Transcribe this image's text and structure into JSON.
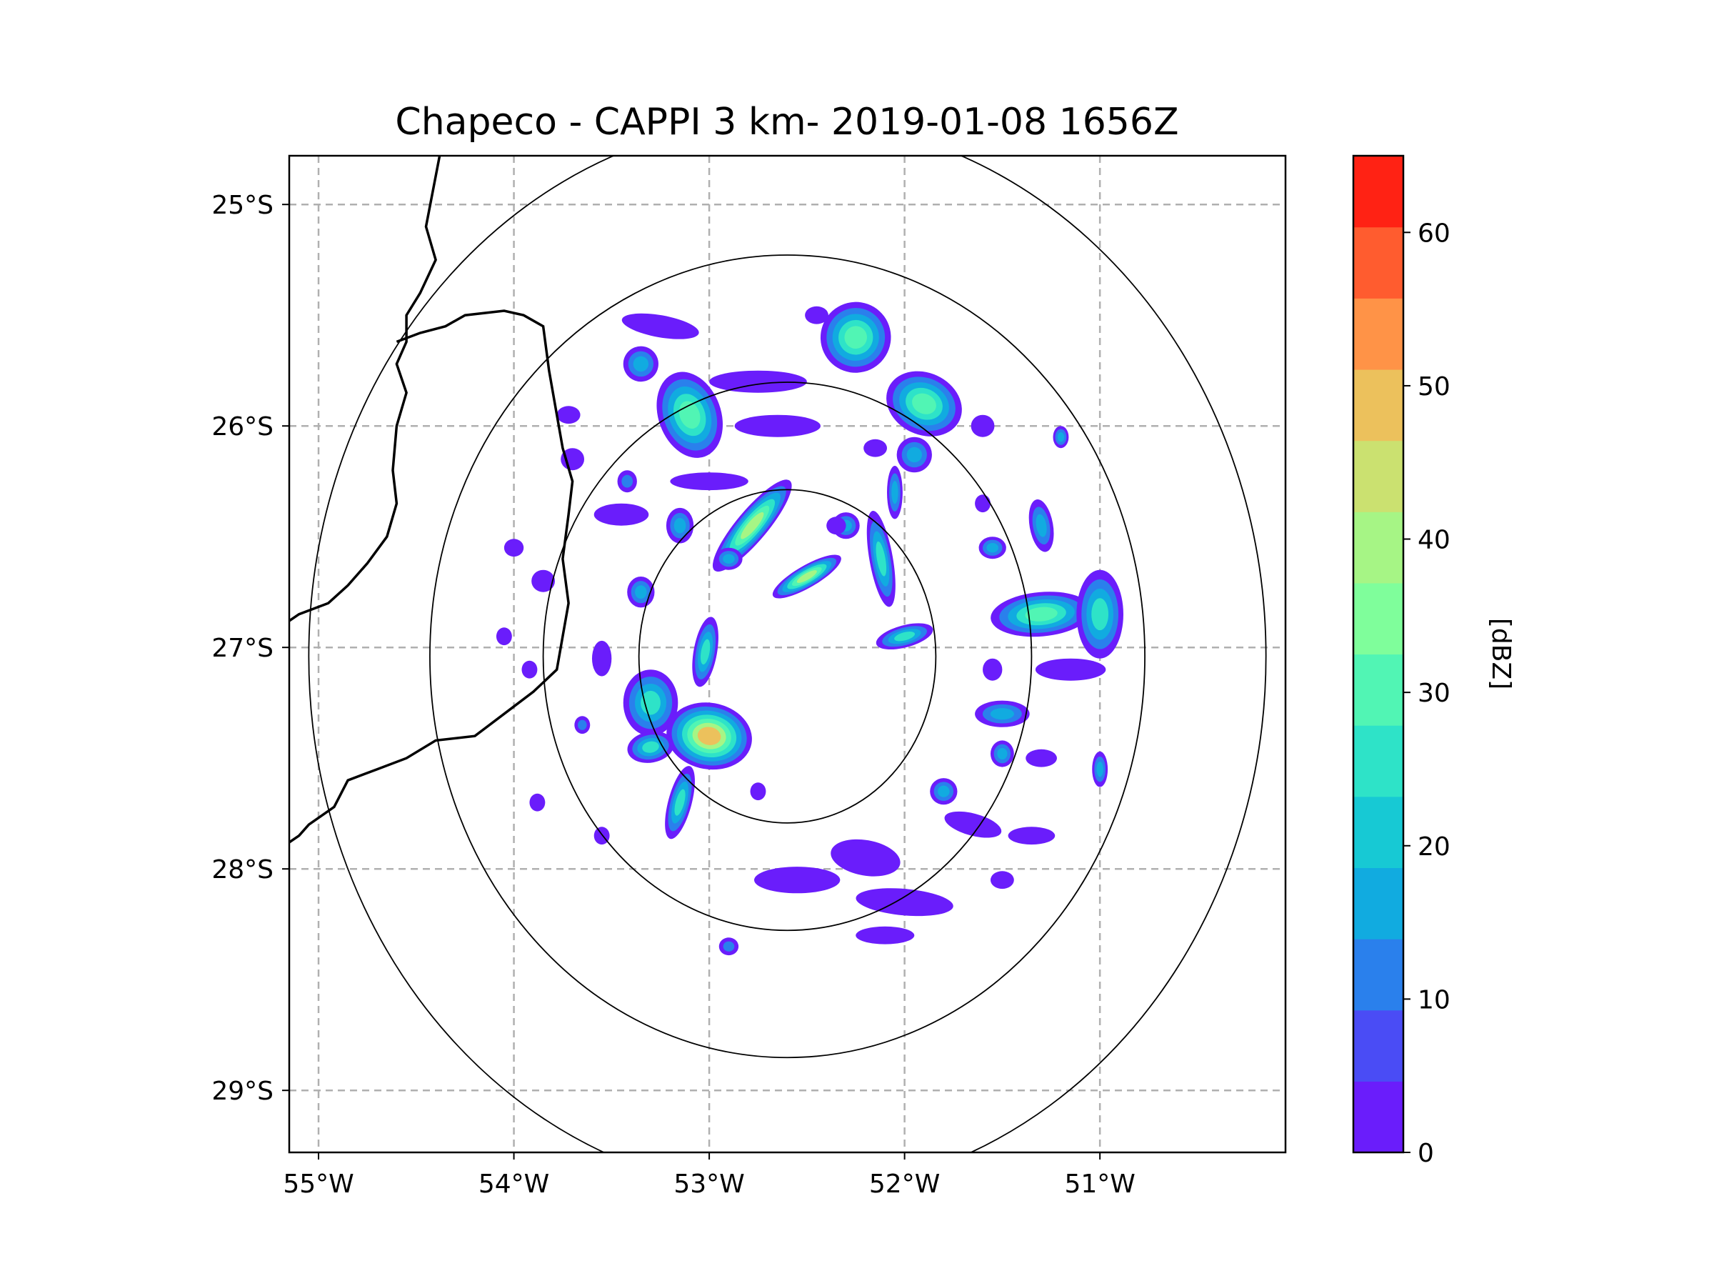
{
  "chart_data": {
    "type": "heatmap",
    "title": "Chapeco - CAPPI 3 km- 2019-01-08 1656Z",
    "xlabel": "",
    "ylabel": "",
    "xlim": [
      -55.15,
      -50.05
    ],
    "ylim": [
      -29.28,
      -24.78
    ],
    "x_ticks": [
      {
        "value": -55,
        "label": "55°W"
      },
      {
        "value": -54,
        "label": "54°W"
      },
      {
        "value": -53,
        "label": "53°W"
      },
      {
        "value": -52,
        "label": "52°W"
      },
      {
        "value": -51,
        "label": "51°W"
      }
    ],
    "y_ticks": [
      {
        "value": -25,
        "label": "25°S"
      },
      {
        "value": -26,
        "label": "26°S"
      },
      {
        "value": -27,
        "label": "27°S"
      },
      {
        "value": -28,
        "label": "28°S"
      },
      {
        "value": -29,
        "label": "29°S"
      }
    ],
    "grid": true,
    "radar_center": {
      "lon": -52.6,
      "lat": -27.04
    },
    "range_rings_deg": [
      0.76,
      1.25,
      1.83,
      2.45
    ],
    "colorbar": {
      "label": "[dBZ]",
      "min": 0,
      "max": 65,
      "step": 5,
      "tick_labels": [
        "0",
        "10",
        "20",
        "30",
        "40",
        "50",
        "60"
      ],
      "colors": [
        "#6a1dfb",
        "#4a4cf5",
        "#2a80ec",
        "#11abe0",
        "#17c9d4",
        "#2ee3c8",
        "#51f5b4",
        "#7ffe9b",
        "#a6f585",
        "#cbe170",
        "#ecc15c",
        "#ff9347",
        "#ff5c2f",
        "#ff2214"
      ]
    },
    "echoes": [
      {
        "lon": -53.1,
        "lat": -25.95,
        "rx": 0.16,
        "ry": 0.2,
        "rot": 20,
        "dbz": 36
      },
      {
        "lon": -53.35,
        "lat": -25.72,
        "rx": 0.09,
        "ry": 0.08,
        "rot": 0,
        "dbz": 22
      },
      {
        "lon": -52.25,
        "lat": -25.6,
        "rx": 0.18,
        "ry": 0.16,
        "rot": -20,
        "dbz": 40
      },
      {
        "lon": -51.9,
        "lat": -25.9,
        "rx": 0.2,
        "ry": 0.14,
        "rot": -25,
        "dbz": 36
      },
      {
        "lon": -51.95,
        "lat": -26.13,
        "rx": 0.09,
        "ry": 0.08,
        "rot": 0,
        "dbz": 25
      },
      {
        "lon": -52.78,
        "lat": -26.45,
        "rx": 0.3,
        "ry": 0.07,
        "rot": 50,
        "dbz": 45
      },
      {
        "lon": -52.5,
        "lat": -26.68,
        "rx": 0.2,
        "ry": 0.05,
        "rot": 30,
        "dbz": 42
      },
      {
        "lon": -52.3,
        "lat": -26.45,
        "rx": 0.07,
        "ry": 0.06,
        "rot": 0,
        "dbz": 22
      },
      {
        "lon": -52.12,
        "lat": -26.6,
        "rx": 0.06,
        "ry": 0.22,
        "rot": 10,
        "dbz": 30
      },
      {
        "lon": -52.0,
        "lat": -26.95,
        "rx": 0.15,
        "ry": 0.05,
        "rot": 15,
        "dbz": 28
      },
      {
        "lon": -53.35,
        "lat": -26.75,
        "rx": 0.07,
        "ry": 0.07,
        "rot": 0,
        "dbz": 25
      },
      {
        "lon": -53.15,
        "lat": -26.45,
        "rx": 0.07,
        "ry": 0.08,
        "rot": 0,
        "dbz": 22
      },
      {
        "lon": -52.9,
        "lat": -26.6,
        "rx": 0.07,
        "ry": 0.05,
        "rot": 0,
        "dbz": 25
      },
      {
        "lon": -53.3,
        "lat": -27.25,
        "rx": 0.14,
        "ry": 0.15,
        "rot": 0,
        "dbz": 32
      },
      {
        "lon": -53.0,
        "lat": -27.4,
        "rx": 0.22,
        "ry": 0.15,
        "rot": -10,
        "dbz": 50
      },
      {
        "lon": -53.3,
        "lat": -27.45,
        "rx": 0.12,
        "ry": 0.07,
        "rot": 10,
        "dbz": 28
      },
      {
        "lon": -53.15,
        "lat": -27.7,
        "rx": 0.06,
        "ry": 0.17,
        "rot": -15,
        "dbz": 32
      },
      {
        "lon": -53.02,
        "lat": -27.02,
        "rx": 0.06,
        "ry": 0.16,
        "rot": -10,
        "dbz": 32
      },
      {
        "lon": -51.3,
        "lat": -26.85,
        "rx": 0.26,
        "ry": 0.1,
        "rot": 5,
        "dbz": 36
      },
      {
        "lon": -51.0,
        "lat": -26.85,
        "rx": 0.12,
        "ry": 0.2,
        "rot": 0,
        "dbz": 30
      },
      {
        "lon": -51.3,
        "lat": -26.45,
        "rx": 0.06,
        "ry": 0.12,
        "rot": 10,
        "dbz": 25
      },
      {
        "lon": -51.55,
        "lat": -26.55,
        "rx": 0.07,
        "ry": 0.05,
        "rot": 0,
        "dbz": 20
      },
      {
        "lon": -51.5,
        "lat": -27.3,
        "rx": 0.14,
        "ry": 0.06,
        "rot": 0,
        "dbz": 25
      },
      {
        "lon": -51.5,
        "lat": -27.48,
        "rx": 0.06,
        "ry": 0.06,
        "rot": 0,
        "dbz": 20
      },
      {
        "lon": -51.8,
        "lat": -27.65,
        "rx": 0.07,
        "ry": 0.06,
        "rot": 0,
        "dbz": 22
      },
      {
        "lon": -51.0,
        "lat": -27.55,
        "rx": 0.04,
        "ry": 0.08,
        "rot": 0,
        "dbz": 18
      },
      {
        "lon": -51.2,
        "lat": -26.05,
        "rx": 0.04,
        "ry": 0.05,
        "rot": 0,
        "dbz": 18
      },
      {
        "lon": -52.05,
        "lat": -26.3,
        "rx": 0.04,
        "ry": 0.12,
        "rot": 0,
        "dbz": 20
      },
      {
        "lon": -53.42,
        "lat": -26.25,
        "rx": 0.05,
        "ry": 0.05,
        "rot": 0,
        "dbz": 15
      },
      {
        "lon": -53.65,
        "lat": -27.35,
        "rx": 0.04,
        "ry": 0.04,
        "rot": 0,
        "dbz": 15
      },
      {
        "lon": -52.9,
        "lat": -28.35,
        "rx": 0.05,
        "ry": 0.04,
        "rot": 0,
        "dbz": 12
      },
      {
        "lon": -52.2,
        "lat": -27.95,
        "rx": 0.18,
        "ry": 0.08,
        "rot": -10,
        "dbz": 8
      },
      {
        "lon": -52.55,
        "lat": -28.05,
        "rx": 0.22,
        "ry": 0.06,
        "rot": 0,
        "dbz": 6
      },
      {
        "lon": -52.0,
        "lat": -28.15,
        "rx": 0.25,
        "ry": 0.06,
        "rot": -5,
        "dbz": 6
      },
      {
        "lon": -53.25,
        "lat": -25.55,
        "rx": 0.2,
        "ry": 0.05,
        "rot": -10,
        "dbz": 6
      },
      {
        "lon": -52.75,
        "lat": -25.8,
        "rx": 0.25,
        "ry": 0.05,
        "rot": 0,
        "dbz": 6
      },
      {
        "lon": -52.65,
        "lat": -26.0,
        "rx": 0.22,
        "ry": 0.05,
        "rot": 0,
        "dbz": 5
      },
      {
        "lon": -53.45,
        "lat": -26.4,
        "rx": 0.14,
        "ry": 0.05,
        "rot": 0,
        "dbz": 6
      },
      {
        "lon": -53.0,
        "lat": -26.25,
        "rx": 0.2,
        "ry": 0.04,
        "rot": 0,
        "dbz": 5
      },
      {
        "lon": -51.15,
        "lat": -27.1,
        "rx": 0.18,
        "ry": 0.05,
        "rot": 0,
        "dbz": 5
      },
      {
        "lon": -51.65,
        "lat": -27.8,
        "rx": 0.15,
        "ry": 0.05,
        "rot": -15,
        "dbz": 6
      },
      {
        "lon": -51.35,
        "lat": -27.85,
        "rx": 0.12,
        "ry": 0.04,
        "rot": 0,
        "dbz": 5
      },
      {
        "lon": -53.85,
        "lat": -26.7,
        "rx": 0.06,
        "ry": 0.05,
        "rot": 0,
        "dbz": 6
      },
      {
        "lon": -53.55,
        "lat": -27.05,
        "rx": 0.05,
        "ry": 0.08,
        "rot": 0,
        "dbz": 5
      },
      {
        "lon": -53.7,
        "lat": -26.15,
        "rx": 0.06,
        "ry": 0.05,
        "rot": 0,
        "dbz": 6
      },
      {
        "lon": -53.72,
        "lat": -25.95,
        "rx": 0.06,
        "ry": 0.04,
        "rot": 0,
        "dbz": 5
      },
      {
        "lon": -52.15,
        "lat": -26.1,
        "rx": 0.06,
        "ry": 0.04,
        "rot": 0,
        "dbz": 5
      },
      {
        "lon": -52.35,
        "lat": -26.45,
        "rx": 0.05,
        "ry": 0.04,
        "rot": 0,
        "dbz": 5
      },
      {
        "lon": -51.3,
        "lat": -27.5,
        "rx": 0.08,
        "ry": 0.04,
        "rot": 0,
        "dbz": 5
      },
      {
        "lon": -52.75,
        "lat": -27.65,
        "rx": 0.04,
        "ry": 0.04,
        "rot": 0,
        "dbz": 5
      },
      {
        "lon": -52.1,
        "lat": -28.3,
        "rx": 0.15,
        "ry": 0.04,
        "rot": 0,
        "dbz": 5
      },
      {
        "lon": -51.55,
        "lat": -27.1,
        "rx": 0.05,
        "ry": 0.05,
        "rot": 0,
        "dbz": 5
      },
      {
        "lon": -51.6,
        "lat": -26.35,
        "rx": 0.04,
        "ry": 0.04,
        "rot": 0,
        "dbz": 5
      },
      {
        "lon": -54.0,
        "lat": -26.55,
        "rx": 0.05,
        "ry": 0.04,
        "rot": 0,
        "dbz": 6
      },
      {
        "lon": -53.92,
        "lat": -27.1,
        "rx": 0.04,
        "ry": 0.04,
        "rot": 0,
        "dbz": 5
      },
      {
        "lon": -53.88,
        "lat": -27.7,
        "rx": 0.04,
        "ry": 0.04,
        "rot": 0,
        "dbz": 5
      },
      {
        "lon": -54.05,
        "lat": -26.95,
        "rx": 0.04,
        "ry": 0.04,
        "rot": 0,
        "dbz": 5
      },
      {
        "lon": -52.45,
        "lat": -25.5,
        "rx": 0.06,
        "ry": 0.04,
        "rot": 0,
        "dbz": 6
      },
      {
        "lon": -51.6,
        "lat": -26.0,
        "rx": 0.06,
        "ry": 0.05,
        "rot": 0,
        "dbz": 6
      },
      {
        "lon": -53.55,
        "lat": -27.85,
        "rx": 0.04,
        "ry": 0.04,
        "rot": 0,
        "dbz": 5
      },
      {
        "lon": -51.5,
        "lat": -28.05,
        "rx": 0.06,
        "ry": 0.04,
        "rot": 0,
        "dbz": 5
      }
    ],
    "coastline_lonlat": [
      [
        -54.38,
        -24.78
      ],
      [
        -54.45,
        -25.1
      ],
      [
        -54.4,
        -25.25
      ],
      [
        -54.48,
        -25.4
      ],
      [
        -54.55,
        -25.5
      ],
      [
        -54.55,
        -25.62
      ],
      [
        -54.6,
        -25.72
      ],
      [
        -54.55,
        -25.85
      ],
      [
        -54.6,
        -26.0
      ],
      [
        -54.62,
        -26.2
      ],
      [
        -54.6,
        -26.35
      ],
      [
        -54.65,
        -26.5
      ],
      [
        -54.75,
        -26.62
      ],
      [
        -54.85,
        -26.72
      ],
      [
        -54.95,
        -26.8
      ],
      [
        -55.1,
        -26.85
      ],
      [
        -55.15,
        -26.88
      ]
    ],
    "border_lonlat": [
      [
        -54.6,
        -25.62
      ],
      [
        -54.48,
        -25.58
      ],
      [
        -54.35,
        -25.55
      ],
      [
        -54.25,
        -25.5
      ],
      [
        -54.05,
        -25.48
      ],
      [
        -53.95,
        -25.5
      ],
      [
        -53.85,
        -25.55
      ],
      [
        -53.82,
        -25.75
      ],
      [
        -53.78,
        -25.95
      ],
      [
        -53.75,
        -26.1
      ],
      [
        -53.7,
        -26.25
      ],
      [
        -53.72,
        -26.4
      ],
      [
        -53.75,
        -26.6
      ],
      [
        -53.72,
        -26.8
      ],
      [
        -53.75,
        -26.95
      ],
      [
        -53.78,
        -27.1
      ],
      [
        -53.9,
        -27.2
      ],
      [
        -54.05,
        -27.3
      ],
      [
        -54.2,
        -27.4
      ],
      [
        -54.4,
        -27.42
      ],
      [
        -54.55,
        -27.5
      ],
      [
        -54.7,
        -27.55
      ],
      [
        -54.85,
        -27.6
      ],
      [
        -54.92,
        -27.72
      ],
      [
        -55.05,
        -27.8
      ],
      [
        -55.1,
        -27.85
      ],
      [
        -55.15,
        -27.88
      ]
    ]
  }
}
